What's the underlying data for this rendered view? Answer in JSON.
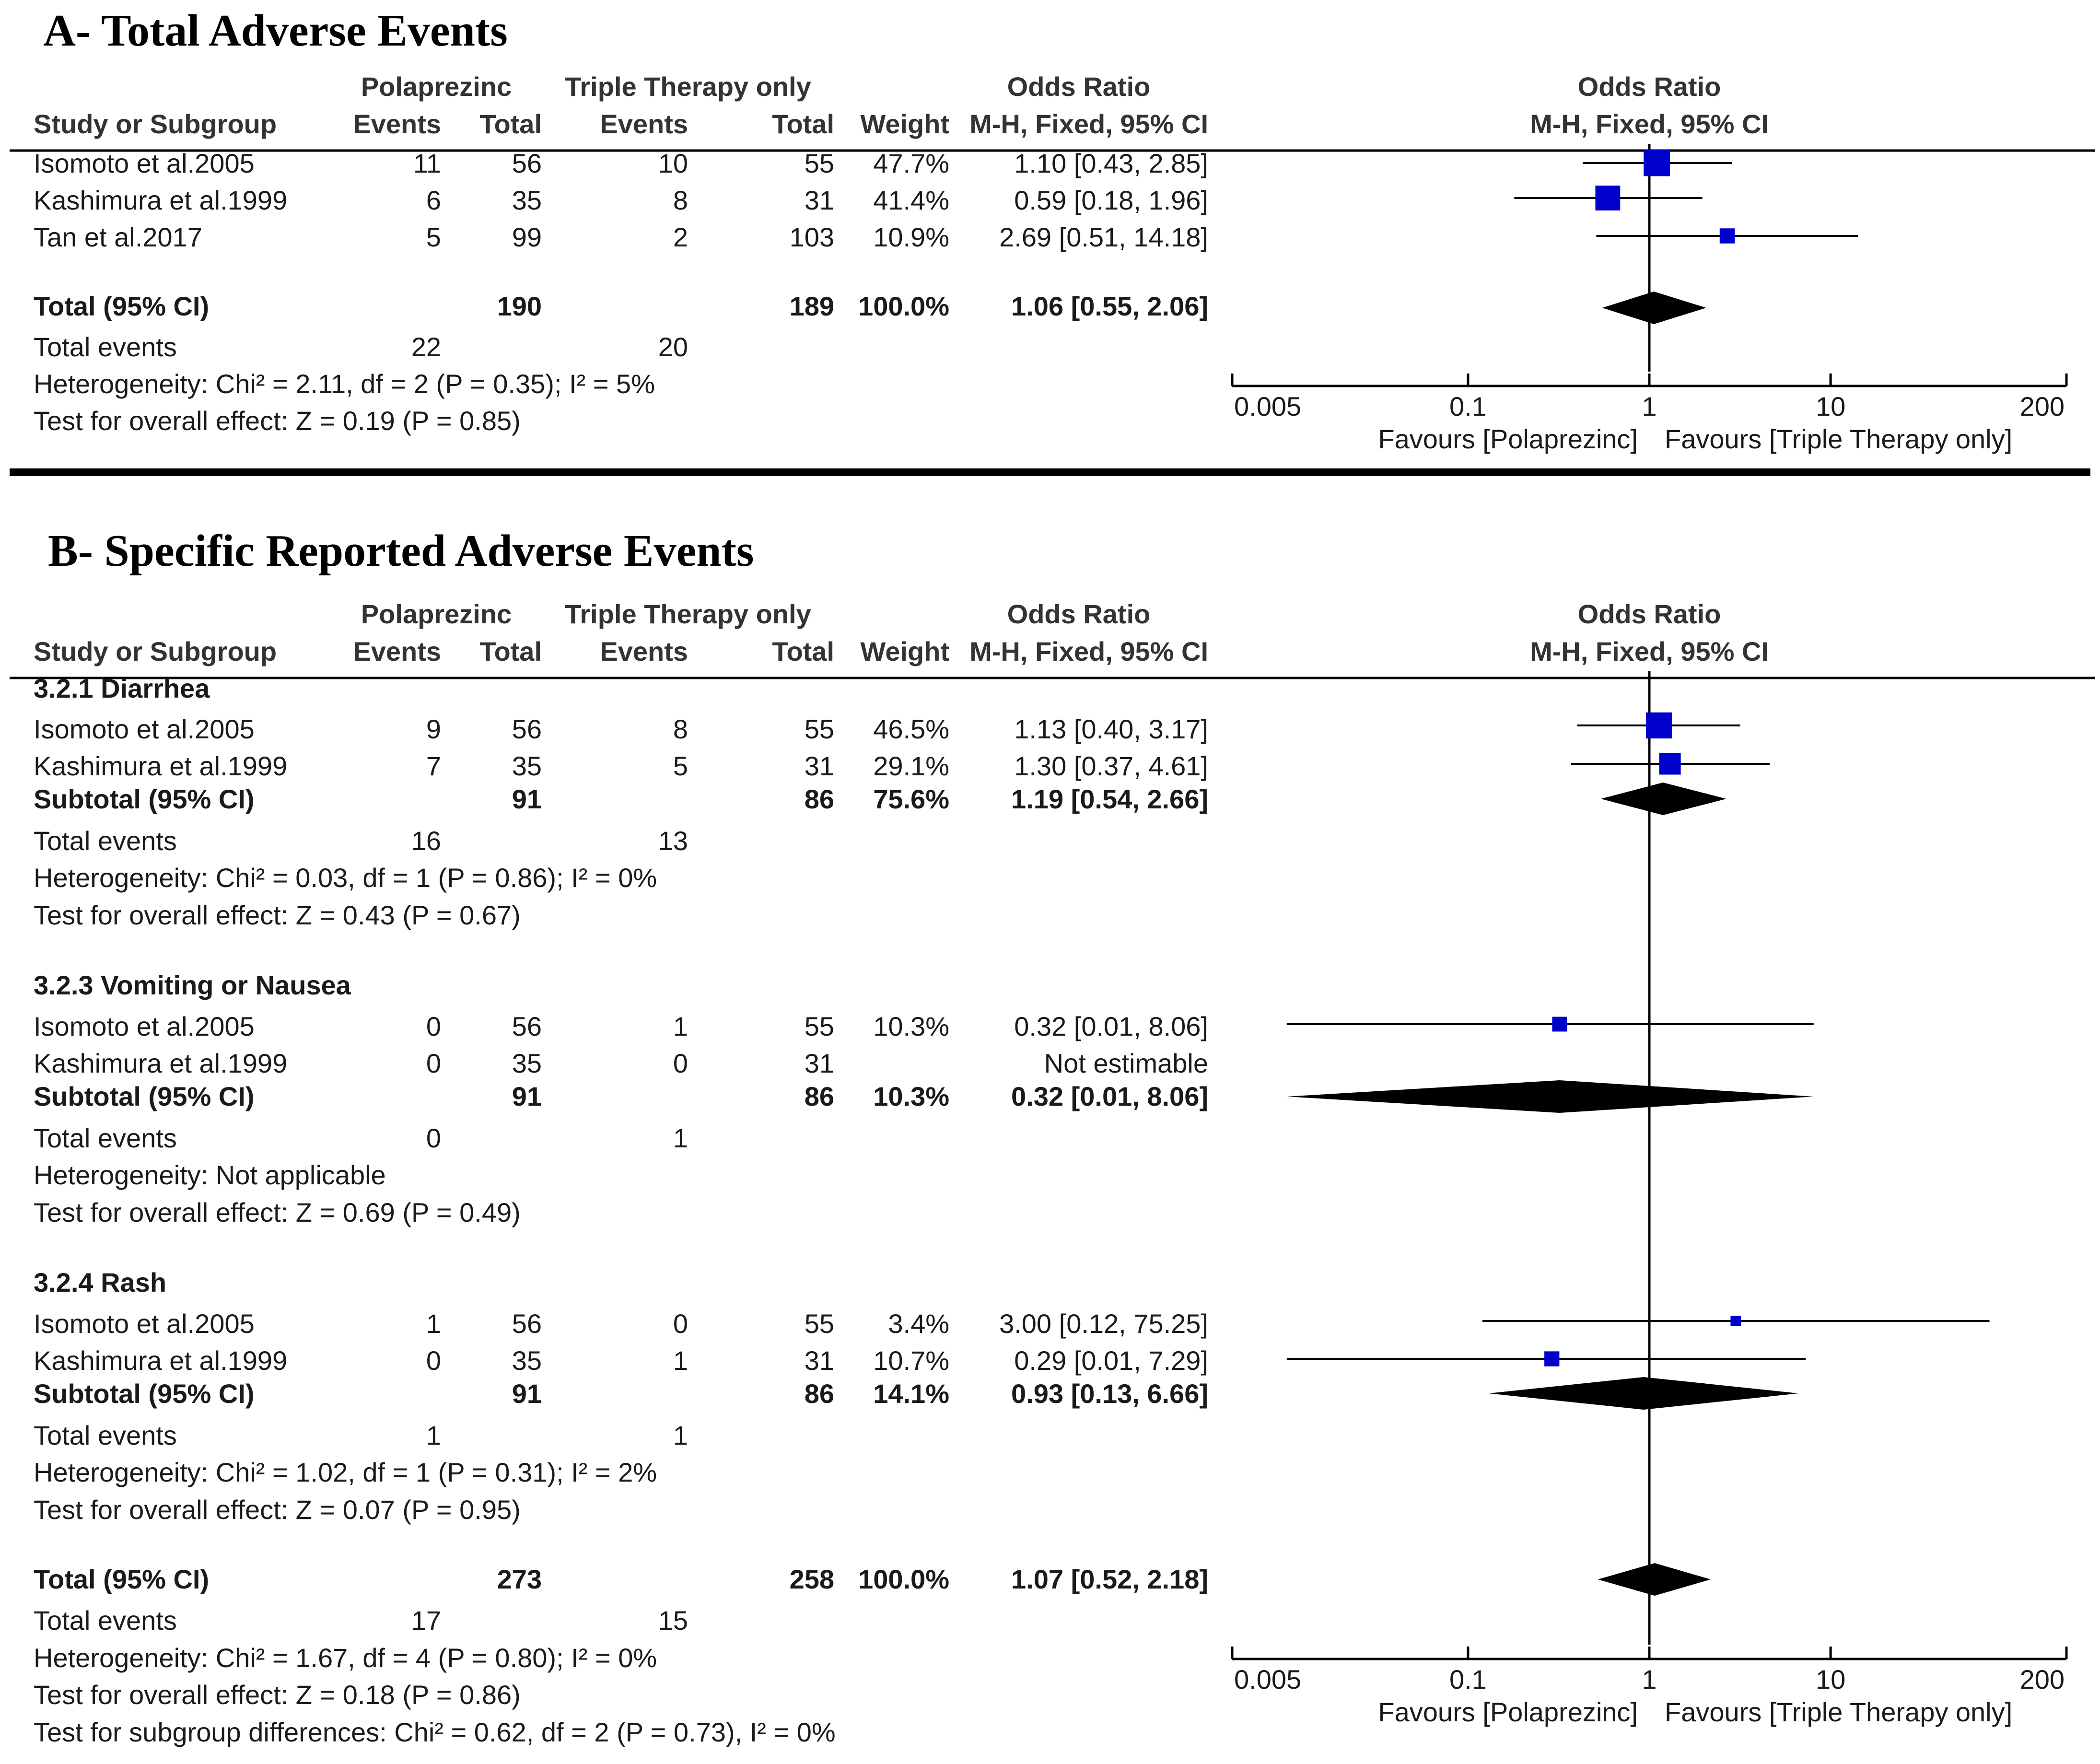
{
  "colors": {
    "study_marker": "#0000cc",
    "diamond": "#000000",
    "text": "#1a1a1a"
  },
  "panel_a": {
    "title": "A- Total Adverse Events",
    "header": {
      "group1": "Polaprezinc",
      "group2": "Triple Therapy only",
      "or_text_top": "Odds Ratio",
      "or_text_bot": "M-H, Fixed, 95% CI",
      "or_plot_top": "Odds Ratio",
      "or_plot_bot": "M-H, Fixed, 95% CI",
      "col_study": "Study or Subgroup",
      "col_e1": "Events",
      "col_t1": "Total",
      "col_e2": "Events",
      "col_t2": "Total",
      "col_weight": "Weight"
    },
    "rows": [
      {
        "type": "study",
        "name": "Isomoto et al.2005",
        "e1": "11",
        "t1": "56",
        "e2": "10",
        "t2": "55",
        "weight": "47.7%",
        "ci_text": "1.10 [0.43, 2.85]"
      },
      {
        "type": "study",
        "name": "Kashimura et al.1999",
        "e1": "6",
        "t1": "35",
        "e2": "8",
        "t2": "31",
        "weight": "41.4%",
        "ci_text": "0.59 [0.18, 1.96]"
      },
      {
        "type": "study",
        "name": "Tan et al.2017",
        "e1": "5",
        "t1": "99",
        "e2": "2",
        "t2": "103",
        "weight": "10.9%",
        "ci_text": "2.69 [0.51, 14.18]"
      },
      {
        "type": "total",
        "name": "Total (95% CI)",
        "t1": "190",
        "t2": "189",
        "weight": "100.0%",
        "ci_text": "1.06 [0.55, 2.06]"
      },
      {
        "type": "events",
        "name": "Total events",
        "e1": "22",
        "e2": "20"
      },
      {
        "type": "note",
        "text": "Heterogeneity: Chi² = 2.11, df = 2 (P = 0.35); I² = 5%"
      },
      {
        "type": "note",
        "text": "Test for overall effect: Z = 0.19 (P = 0.85)"
      }
    ],
    "axis": {
      "ticks": [
        "0.005",
        "0.1",
        "1",
        "10",
        "200"
      ],
      "favours_left": "Favours [Polaprezinc]",
      "favours_right": "Favours [Triple Therapy only]"
    }
  },
  "panel_b": {
    "title": "B- Specific Reported Adverse Events",
    "header": {
      "group1": "Polaprezinc",
      "group2": "Triple Therapy only",
      "or_text_top": "Odds Ratio",
      "or_text_bot": "M-H, Fixed, 95% CI",
      "or_plot_top": "Odds Ratio",
      "or_plot_bot": "M-H, Fixed, 95% CI",
      "col_study": "Study or Subgroup",
      "col_e1": "Events",
      "col_t1": "Total",
      "col_e2": "Events",
      "col_t2": "Total",
      "col_weight": "Weight"
    },
    "rows": [
      {
        "type": "group",
        "name": "3.2.1 Diarrhea"
      },
      {
        "type": "study",
        "name": "Isomoto et al.2005",
        "e1": "9",
        "t1": "56",
        "e2": "8",
        "t2": "55",
        "weight": "46.5%",
        "ci_text": "1.13 [0.40, 3.17]"
      },
      {
        "type": "study",
        "name": "Kashimura et al.1999",
        "e1": "7",
        "t1": "35",
        "e2": "5",
        "t2": "31",
        "weight": "29.1%",
        "ci_text": "1.30 [0.37, 4.61]"
      },
      {
        "type": "subtotal",
        "name": "Subtotal (95% CI)",
        "t1": "91",
        "t2": "86",
        "weight": "75.6%",
        "ci_text": "1.19 [0.54, 2.66]"
      },
      {
        "type": "events",
        "name": "Total events",
        "e1": "16",
        "e2": "13"
      },
      {
        "type": "note",
        "text": "Heterogeneity: Chi² = 0.03, df = 1 (P = 0.86); I² = 0%"
      },
      {
        "type": "note",
        "text": "Test for overall effect: Z = 0.43 (P = 0.67)"
      },
      {
        "type": "group",
        "name": "3.2.3 Vomiting or Nausea"
      },
      {
        "type": "study",
        "name": "Isomoto et al.2005",
        "e1": "0",
        "t1": "56",
        "e2": "1",
        "t2": "55",
        "weight": "10.3%",
        "ci_text": "0.32 [0.01, 8.06]"
      },
      {
        "type": "study",
        "name": "Kashimura et al.1999",
        "e1": "0",
        "t1": "35",
        "e2": "0",
        "t2": "31",
        "weight": "",
        "ci_text": "Not estimable"
      },
      {
        "type": "subtotal",
        "name": "Subtotal (95% CI)",
        "t1": "91",
        "t2": "86",
        "weight": "10.3%",
        "ci_text": "0.32 [0.01, 8.06]"
      },
      {
        "type": "events",
        "name": "Total events",
        "e1": "0",
        "e2": "1"
      },
      {
        "type": "note",
        "text": "Heterogeneity: Not applicable"
      },
      {
        "type": "note",
        "text": "Test for overall effect: Z = 0.69 (P = 0.49)"
      },
      {
        "type": "group",
        "name": "3.2.4 Rash"
      },
      {
        "type": "study",
        "name": "Isomoto et al.2005",
        "e1": "1",
        "t1": "56",
        "e2": "0",
        "t2": "55",
        "weight": "3.4%",
        "ci_text": "3.00 [0.12, 75.25]"
      },
      {
        "type": "study",
        "name": "Kashimura et al.1999",
        "e1": "0",
        "t1": "35",
        "e2": "1",
        "t2": "31",
        "weight": "10.7%",
        "ci_text": "0.29 [0.01, 7.29]"
      },
      {
        "type": "subtotal",
        "name": "Subtotal (95% CI)",
        "t1": "91",
        "t2": "86",
        "weight": "14.1%",
        "ci_text": "0.93 [0.13, 6.66]"
      },
      {
        "type": "events",
        "name": "Total events",
        "e1": "1",
        "e2": "1"
      },
      {
        "type": "note",
        "text": "Heterogeneity: Chi² = 1.02, df = 1 (P = 0.31); I² = 2%"
      },
      {
        "type": "note",
        "text": "Test for overall effect: Z = 0.07 (P = 0.95)"
      },
      {
        "type": "total",
        "name": "Total (95% CI)",
        "t1": "273",
        "t2": "258",
        "weight": "100.0%",
        "ci_text": "1.07 [0.52, 2.18]"
      },
      {
        "type": "events",
        "name": "Total events",
        "e1": "17",
        "e2": "15"
      },
      {
        "type": "note",
        "text": "Heterogeneity: Chi² = 1.67, df = 4 (P = 0.80); I² = 0%"
      },
      {
        "type": "note",
        "text": "Test for overall effect: Z = 0.18 (P = 0.86)"
      },
      {
        "type": "note",
        "text": "Test for subgroup differences: Chi² = 0.62, df = 2 (P = 0.73), I² = 0%"
      }
    ],
    "axis": {
      "ticks": [
        "0.005",
        "0.1",
        "1",
        "10",
        "200"
      ],
      "favours_left": "Favours [Polaprezinc]",
      "favours_right": "Favours [Triple Therapy only]"
    }
  },
  "chart_data": [
    {
      "type": "forest",
      "title": "A- Total Adverse Events",
      "scale": "log",
      "xlim": [
        0.005,
        200
      ],
      "ticks": [
        0.005,
        0.1,
        1,
        10,
        200
      ],
      "xlabel_left": "Favours [Polaprezinc]",
      "xlabel_right": "Favours [Triple Therapy only]",
      "studies": [
        {
          "name": "Isomoto et al.2005",
          "or": 1.1,
          "lo": 0.43,
          "hi": 2.85,
          "weight": 47.7
        },
        {
          "name": "Kashimura et al.1999",
          "or": 0.59,
          "lo": 0.18,
          "hi": 1.96,
          "weight": 41.4
        },
        {
          "name": "Tan et al.2017",
          "or": 2.69,
          "lo": 0.51,
          "hi": 14.18,
          "weight": 10.9
        }
      ],
      "pooled": [
        {
          "name": "Total (95% CI)",
          "or": 1.06,
          "lo": 0.55,
          "hi": 2.06
        }
      ]
    },
    {
      "type": "forest",
      "title": "B- Specific Reported Adverse Events",
      "scale": "log",
      "xlim": [
        0.005,
        200
      ],
      "ticks": [
        0.005,
        0.1,
        1,
        10,
        200
      ],
      "xlabel_left": "Favours [Polaprezinc]",
      "xlabel_right": "Favours [Triple Therapy only]",
      "studies": [
        {
          "group": "3.2.1 Diarrhea",
          "name": "Isomoto et al.2005",
          "or": 1.13,
          "lo": 0.4,
          "hi": 3.17,
          "weight": 46.5
        },
        {
          "group": "3.2.1 Diarrhea",
          "name": "Kashimura et al.1999",
          "or": 1.3,
          "lo": 0.37,
          "hi": 4.61,
          "weight": 29.1
        },
        {
          "group": "3.2.3 Vomiting or Nausea",
          "name": "Isomoto et al.2005",
          "or": 0.32,
          "lo": 0.01,
          "hi": 8.06,
          "weight": 10.3
        },
        {
          "group": "3.2.4 Rash",
          "name": "Isomoto et al.2005",
          "or": 3.0,
          "lo": 0.12,
          "hi": 75.25,
          "weight": 3.4
        },
        {
          "group": "3.2.4 Rash",
          "name": "Kashimura et al.1999",
          "or": 0.29,
          "lo": 0.01,
          "hi": 7.29,
          "weight": 10.7
        }
      ],
      "pooled": [
        {
          "name": "Subtotal 3.2.1 Diarrhea",
          "or": 1.19,
          "lo": 0.54,
          "hi": 2.66
        },
        {
          "name": "Subtotal 3.2.3 Vomiting or Nausea",
          "or": 0.32,
          "lo": 0.01,
          "hi": 8.06
        },
        {
          "name": "Subtotal 3.2.4 Rash",
          "or": 0.93,
          "lo": 0.13,
          "hi": 6.66
        },
        {
          "name": "Total (95% CI)",
          "or": 1.07,
          "lo": 0.52,
          "hi": 2.18
        }
      ]
    }
  ]
}
